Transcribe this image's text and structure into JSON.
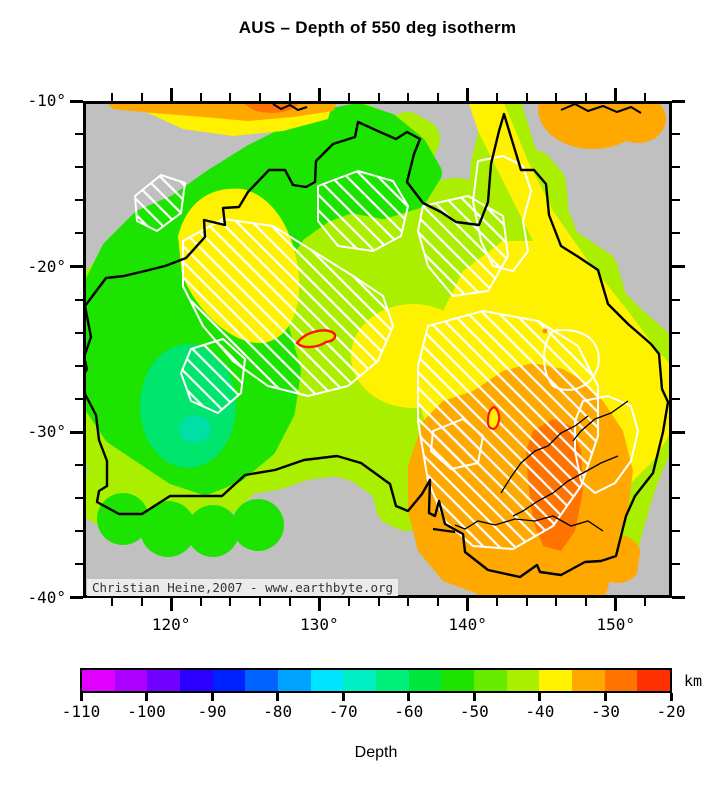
{
  "figure": {
    "title": "AUS – Depth of 550 deg isotherm",
    "watermark": "Christian Heine,2007 - www.earthbyte.org"
  },
  "map_axes": {
    "lat_ticks": [
      {
        "value": -10,
        "label": "-10°"
      },
      {
        "value": -20,
        "label": "-20°"
      },
      {
        "value": -30,
        "label": "-30°"
      },
      {
        "value": -40,
        "label": "-40°"
      }
    ],
    "lon_ticks": [
      {
        "value": 120,
        "label": "120°"
      },
      {
        "value": 130,
        "label": "130°"
      },
      {
        "value": 140,
        "label": "140°"
      },
      {
        "value": 150,
        "label": "150°"
      }
    ],
    "lon_range": [
      114.05,
      153.8
    ],
    "lat_range": [
      -40,
      -10
    ],
    "minor_step_deg": 2
  },
  "colorbar": {
    "unit": "km",
    "label": "Depth",
    "min": -110,
    "max": -20,
    "bin_width": 5,
    "tick_labels": [
      "-110",
      "-100",
      "-90",
      "-80",
      "-70",
      "-60",
      "-50",
      "-40",
      "-30",
      "-20"
    ],
    "bin_colors": [
      "#E100FF",
      "#AB00FF",
      "#7000FF",
      "#2B00FF",
      "#0021FF",
      "#0062FF",
      "#00A3FF",
      "#00E4FF",
      "#00F0C3",
      "#00EE7A",
      "#00E63C",
      "#1CE300",
      "#66EA00",
      "#AAEF00",
      "#FFF200",
      "#FFA800",
      "#FF7300",
      "#FF3000"
    ]
  },
  "map_palette": {
    "ocean_gray": "#C0C0C0",
    "coast_black": "#000000",
    "hatch_white": "#FFFFFF",
    "green": "#1DE300",
    "spring_green": "#00E56E",
    "teal_green": "#00DFA6",
    "chartreuse": "#AAEF00",
    "yellow": "#FFF200",
    "orange": "#FFA800",
    "deep_orange": "#FF7300",
    "red_contour": "#FF1400",
    "red_contour_fill_a": "#CCF200",
    "red_contour_fill_b": "#FFF200",
    "orange_dot": "#FF8C00"
  },
  "chart_data": {
    "type": "map",
    "title": "AUS – Depth of 550 deg isotherm",
    "variable": "Depth of 550 deg isotherm",
    "units": "km",
    "region": {
      "lon_min": 114,
      "lon_max": 154,
      "lat_min": -40,
      "lat_max": -10
    },
    "colorbar_scale": {
      "min": -110,
      "max": -20,
      "bin_width": 5,
      "tick_step": 10
    },
    "legend_position": "bottom",
    "no_data_mask": "gray (offshore/ocean)",
    "overlays": [
      "white hatched geological province polygons",
      "black coastline",
      "black river traces",
      "red contour outlines"
    ],
    "observations": [
      {
        "area": "southwest Western Australia (deepest)",
        "approx_depth_km": -65
      },
      {
        "area": "western and northern Australia",
        "approx_depth_km": -55
      },
      {
        "area": "central Australia",
        "approx_depth_km": -45
      },
      {
        "area": "eastern interior / Queensland",
        "approx_depth_km": -40
      },
      {
        "area": "southeast Australia (Murray Basin)",
        "approx_depth_km": -30
      },
      {
        "area": "core near 145E, -33S (shallowest)",
        "approx_depth_km": -25
      }
    ]
  }
}
